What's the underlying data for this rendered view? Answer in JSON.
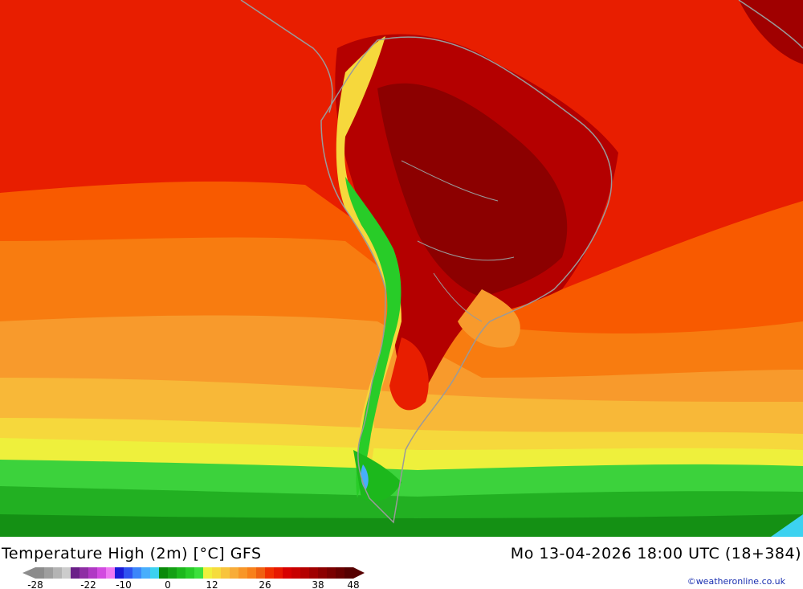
{
  "header": {
    "title": "Temperature High (2m) [°C] GFS",
    "run_info": "Mo 13-04-2026 18:00 UTC (18+384)"
  },
  "legend": {
    "ticks": [
      {
        "label": "-28",
        "box": 0
      },
      {
        "label": "-22",
        "box": 6
      },
      {
        "label": "-10",
        "box": 10
      },
      {
        "label": "0",
        "box": 15
      },
      {
        "label": "12",
        "box": 20
      },
      {
        "label": "26",
        "box": 26
      },
      {
        "label": "38",
        "box": 32
      },
      {
        "label": "48",
        "box": 36
      }
    ],
    "colors": [
      "#8c8c8c",
      "#9e9e9e",
      "#b4b4b4",
      "#cccccc",
      "#6a1f88",
      "#8e2ea4",
      "#b038c4",
      "#d24ae0",
      "#ee78f2",
      "#1a1ad8",
      "#2e52f0",
      "#3c86fa",
      "#48aefc",
      "#3cd2f0",
      "#0a8a0a",
      "#14a014",
      "#1cb81c",
      "#28cc28",
      "#3ce03c",
      "#f0f03c",
      "#f6dc3c",
      "#f8c43c",
      "#f8ac38",
      "#f89628",
      "#f8801a",
      "#f06010",
      "#f03000",
      "#e81800",
      "#d80000",
      "#c80000",
      "#b40000",
      "#a00000",
      "#8c0000",
      "#7a0000",
      "#680000",
      "#560000"
    ]
  },
  "credit": "©weatheronline.co.uk"
}
